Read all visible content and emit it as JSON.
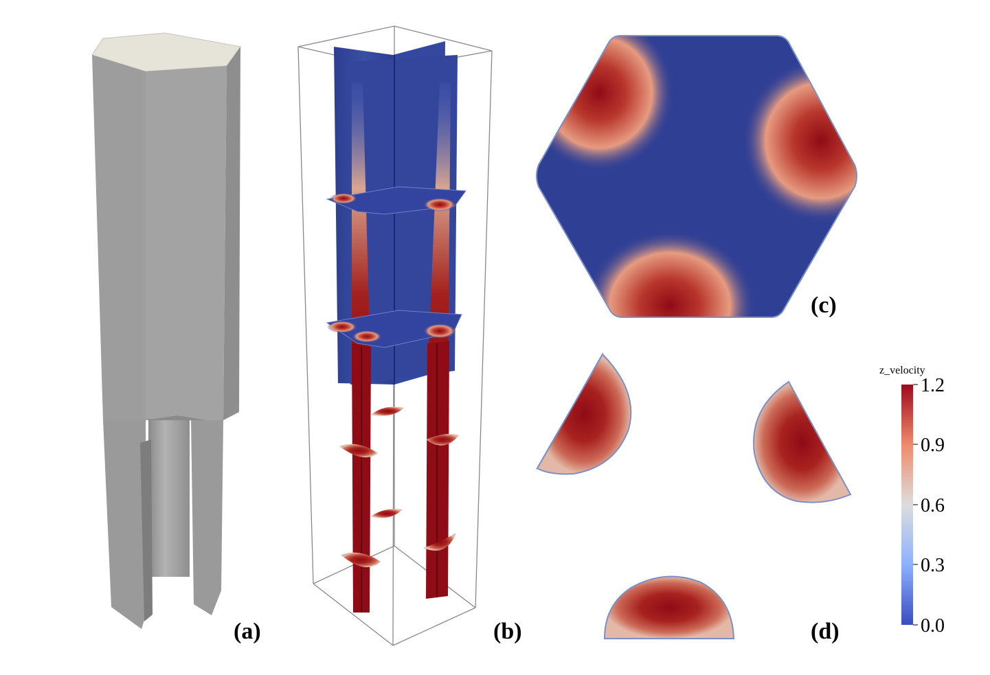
{
  "panels": {
    "a": "(a)",
    "b": "(b)",
    "c": "(c)",
    "d": "(d)"
  },
  "colorbar": {
    "title": "z_velocity",
    "ticks": [
      "1.2",
      "0.9",
      "0.6",
      "0.3",
      "0.0"
    ],
    "min": 0.0,
    "max": 1.2,
    "colors": {
      "low": "#3b4cc0",
      "mid": "#dddddd",
      "high": "#9e0a1e"
    }
  },
  "colors": {
    "solid_gray": "#9a9a9a",
    "solid_top": "#e6e3d8",
    "field_blue": "#2f3f94",
    "field_red": "#8f0b16",
    "outline": "#7b8fc7"
  }
}
